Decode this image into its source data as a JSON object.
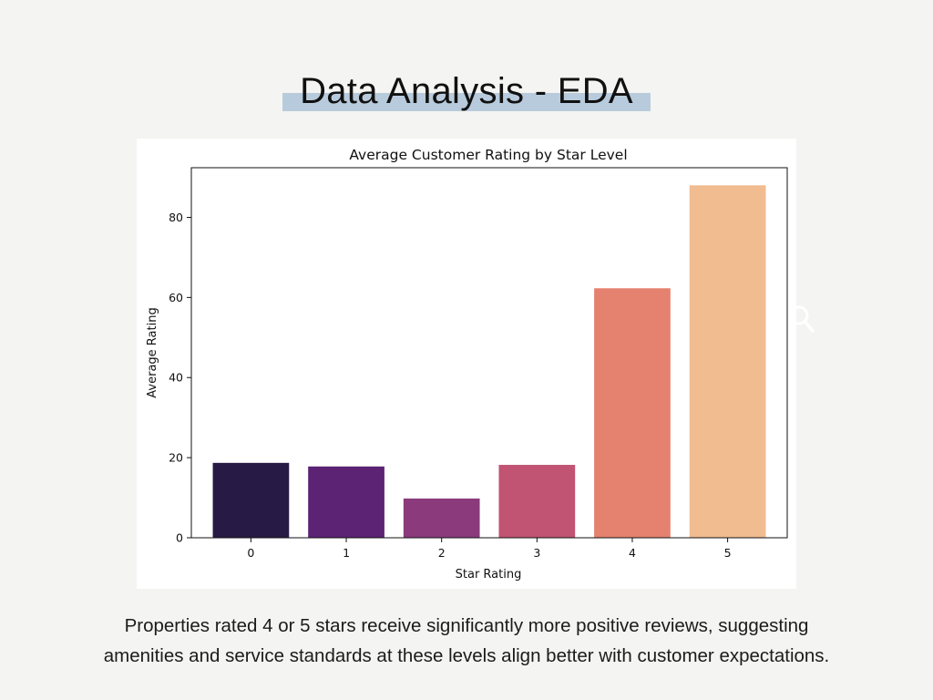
{
  "slide": {
    "title": "Data Analysis - EDA",
    "accent_color": "#b8cbdc",
    "caption_lines": [
      "Properties rated 4 or 5 stars receive significantly more positive reviews, suggesting",
      "amenities and service standards at these levels align better with customer expectations."
    ],
    "overlay_icon": "magnifier-icon"
  },
  "chart_data": {
    "type": "bar",
    "title": "Average Customer Rating by Star Level",
    "xlabel": "Star Rating",
    "ylabel": "Average Rating",
    "categories": [
      "0",
      "1",
      "2",
      "3",
      "4",
      "5"
    ],
    "values": [
      18.7,
      17.8,
      9.8,
      18.2,
      62.3,
      88.0
    ],
    "colors": [
      "#271a45",
      "#5c2374",
      "#8b3a7c",
      "#c15472",
      "#e5826f",
      "#f0bc90"
    ],
    "yticks": [
      0,
      20,
      40,
      60,
      80
    ],
    "ylim": [
      0,
      92.4
    ],
    "grid": false
  }
}
